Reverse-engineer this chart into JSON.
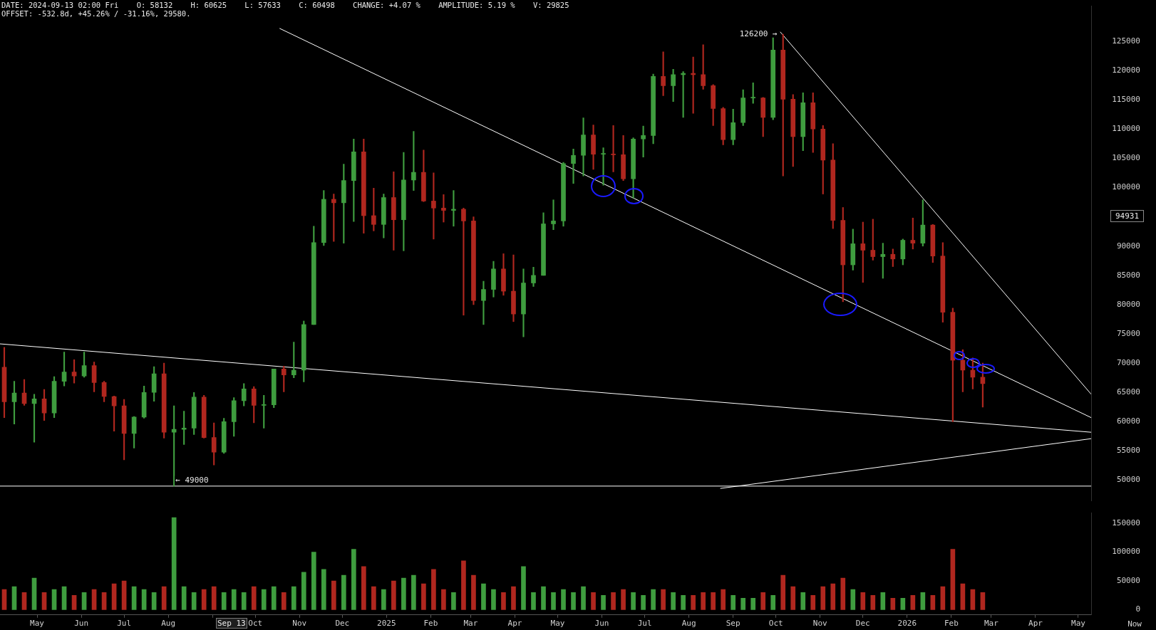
{
  "chart_data": [
    {
      "type": "candlestick",
      "annotations": [
        "DATE: 2024-09-13 02:00 Fri    O: 58132    H: 60625    L: 57633    C: 60498    CHANGE: +4.07 %    AMPLITUDE: 5.19 %    V: 29825",
        "OFFSET: -532.8d, +45.26% / -31.16%, 29580.",
        {
          "text": "126200 →",
          "x": "2025-10-06",
          "y": 126200
        },
        {
          "text": "← 49000",
          "x": "2024-08-05",
          "y": 49000
        },
        "94931"
      ],
      "x": [
        "2024-04-08",
        "2024-04-15",
        "2024-04-22",
        "2024-04-29",
        "2024-05-06",
        "2024-05-13",
        "2024-05-20",
        "2024-05-27",
        "2024-06-03",
        "2024-06-10",
        "2024-06-17",
        "2024-06-24",
        "2024-07-01",
        "2024-07-08",
        "2024-07-15",
        "2024-07-22",
        "2024-07-29",
        "2024-08-05",
        "2024-08-12",
        "2024-08-19",
        "2024-08-26",
        "2024-09-02",
        "2024-09-09",
        "2024-09-16",
        "2024-09-23",
        "2024-09-30",
        "2024-10-07",
        "2024-10-14",
        "2024-10-21",
        "2024-10-28",
        "2024-11-04",
        "2024-11-11",
        "2024-11-18",
        "2024-11-25",
        "2024-12-02",
        "2024-12-09",
        "2024-12-16",
        "2024-12-23",
        "2024-12-30",
        "2025-01-06",
        "2025-01-13",
        "2025-01-20",
        "2025-01-27",
        "2025-02-03",
        "2025-02-10",
        "2025-02-17",
        "2025-02-24",
        "2025-03-03",
        "2025-03-10",
        "2025-03-17",
        "2025-03-24",
        "2025-03-31",
        "2025-04-07",
        "2025-04-14",
        "2025-04-21",
        "2025-04-28",
        "2025-05-05",
        "2025-05-12",
        "2025-05-19",
        "2025-05-26",
        "2025-06-02",
        "2025-06-09",
        "2025-06-16",
        "2025-06-23",
        "2025-06-30",
        "2025-07-07",
        "2025-07-14",
        "2025-07-21",
        "2025-07-28",
        "2025-08-04",
        "2025-08-11",
        "2025-08-18",
        "2025-08-25",
        "2025-09-01",
        "2025-09-08",
        "2025-09-15",
        "2025-09-22",
        "2025-09-29",
        "2025-10-06",
        "2025-10-13",
        "2025-10-20",
        "2025-10-27",
        "2025-11-03",
        "2025-11-10",
        "2025-11-17",
        "2025-11-24",
        "2025-12-01",
        "2025-12-08",
        "2025-12-15",
        "2025-12-22",
        "2025-12-29",
        "2026-01-05",
        "2026-01-12",
        "2026-01-19",
        "2026-01-26",
        "2026-02-02",
        "2026-02-09",
        "2026-02-16",
        "2026-02-23"
      ],
      "ohlc": [
        [
          69300,
          72700,
          60700,
          63400
        ],
        [
          63400,
          66900,
          59600,
          64900
        ],
        [
          64900,
          67200,
          62800,
          63100
        ],
        [
          63100,
          64700,
          56500,
          63900
        ],
        [
          63900,
          65500,
          60200,
          61500
        ],
        [
          61500,
          67700,
          60700,
          66900
        ],
        [
          66900,
          71900,
          66100,
          68500
        ],
        [
          68500,
          70600,
          66600,
          67800
        ],
        [
          67800,
          71900,
          67600,
          69600
        ],
        [
          69600,
          70200,
          65100,
          66700
        ],
        [
          66700,
          66900,
          63400,
          64300
        ],
        [
          64300,
          64400,
          58400,
          62700
        ],
        [
          62700,
          63800,
          53500,
          58000
        ],
        [
          58000,
          60900,
          55500,
          60800
        ],
        [
          60800,
          66100,
          60600,
          65000
        ],
        [
          65000,
          69400,
          63500,
          68200
        ],
        [
          68200,
          70000,
          57200,
          58200
        ],
        [
          58200,
          62700,
          49000,
          58700
        ],
        [
          58700,
          61800,
          56100,
          58900
        ],
        [
          58900,
          65000,
          57800,
          64200
        ],
        [
          64200,
          64500,
          57200,
          57300
        ],
        [
          57300,
          59800,
          52600,
          54800
        ],
        [
          54800,
          60600,
          54600,
          60000
        ],
        [
          60000,
          64100,
          57500,
          63600
        ],
        [
          63600,
          66500,
          62700,
          65600
        ],
        [
          65600,
          66000,
          59800,
          62800
        ],
        [
          62800,
          64500,
          58900,
          62900
        ],
        [
          62900,
          69000,
          62400,
          69000
        ],
        [
          69000,
          69500,
          65100,
          68000
        ],
        [
          68000,
          73600,
          67500,
          68800
        ],
        [
          68800,
          77200,
          66800,
          76600
        ],
        [
          76600,
          93400,
          76600,
          90600
        ],
        [
          90600,
          99500,
          90100,
          98000
        ],
        [
          98000,
          98900,
          90800,
          97400
        ],
        [
          97400,
          104000,
          90500,
          101200
        ],
        [
          101200,
          108300,
          94200,
          106100
        ],
        [
          106100,
          108300,
          92200,
          95200
        ],
        [
          95200,
          99900,
          92600,
          93700
        ],
        [
          93700,
          98900,
          91400,
          98300
        ],
        [
          98300,
          102700,
          89300,
          94500
        ],
        [
          94500,
          106000,
          89200,
          101300
        ],
        [
          101300,
          109600,
          99500,
          102600
        ],
        [
          102600,
          106400,
          97600,
          97700
        ],
        [
          97700,
          102500,
          91200,
          96500
        ],
        [
          96500,
          98800,
          94100,
          96100
        ],
        [
          96100,
          99500,
          93400,
          96300
        ],
        [
          96300,
          96500,
          78200,
          94300
        ],
        [
          94300,
          95000,
          80000,
          80700
        ],
        [
          80700,
          84000,
          76600,
          82600
        ],
        [
          82600,
          87400,
          81300,
          86100
        ],
        [
          86100,
          88700,
          81600,
          82300
        ],
        [
          82300,
          88500,
          77100,
          78400
        ],
        [
          78400,
          86100,
          74500,
          83700
        ],
        [
          83700,
          86400,
          83100,
          85000
        ],
        [
          85000,
          95700,
          85000,
          93800
        ],
        [
          93800,
          97900,
          92800,
          94300
        ],
        [
          94300,
          104300,
          93400,
          104100
        ],
        [
          104100,
          106600,
          100700,
          105500
        ],
        [
          105500,
          111900,
          102000,
          109000
        ],
        [
          109000,
          110700,
          103100,
          105700
        ],
        [
          105700,
          106800,
          100400,
          105700
        ],
        [
          105700,
          110600,
          102700,
          105600
        ],
        [
          105600,
          108900,
          101200,
          101500
        ],
        [
          101500,
          108500,
          98200,
          108300
        ],
        [
          108300,
          110500,
          105200,
          108900
        ],
        [
          108900,
          119400,
          107500,
          119000
        ],
        [
          119000,
          123200,
          115700,
          117400
        ],
        [
          117400,
          120200,
          114700,
          119300
        ],
        [
          119300,
          119800,
          112000,
          119500
        ],
        [
          119500,
          122300,
          112700,
          119300
        ],
        [
          119300,
          124400,
          116800,
          117400
        ],
        [
          117400,
          117600,
          110600,
          113500
        ],
        [
          113500,
          113700,
          107300,
          108200
        ],
        [
          108200,
          113400,
          107300,
          111100
        ],
        [
          111100,
          116700,
          110600,
          115300
        ],
        [
          115300,
          117900,
          114400,
          115300
        ],
        [
          115300,
          115400,
          108700,
          112000
        ],
        [
          112000,
          125600,
          111600,
          123500
        ],
        [
          123500,
          126200,
          102000,
          115100
        ],
        [
          115100,
          115900,
          103600,
          108700
        ],
        [
          108700,
          116200,
          106300,
          114500
        ],
        [
          114500,
          116200,
          106000,
          110000
        ],
        [
          110000,
          110600,
          98900,
          104700
        ],
        [
          104700,
          107500,
          93000,
          94400
        ],
        [
          94400,
          96600,
          80500,
          86800
        ],
        [
          86800,
          92900,
          85900,
          90400
        ],
        [
          90400,
          94100,
          83800,
          89300
        ],
        [
          89300,
          94600,
          87600,
          88200
        ],
        [
          88200,
          90500,
          84500,
          88600
        ],
        [
          88600,
          89500,
          86500,
          87800
        ],
        [
          87800,
          91200,
          86800,
          91000
        ],
        [
          91000,
          94800,
          89500,
          90500
        ],
        [
          90500,
          97900,
          90000,
          93600
        ],
        [
          93600,
          93700,
          87200,
          88300
        ],
        [
          88300,
          90600,
          77000,
          78700
        ],
        [
          78700,
          79400,
          60000,
          70500
        ],
        [
          70500,
          72300,
          65100,
          68800
        ],
        [
          68800,
          70900,
          65600,
          67600
        ],
        [
          67600,
          70000,
          62500,
          66500
        ]
      ],
      "colors": [
        "#b0271f",
        "#3f9d3f",
        "#b0271f",
        "#3f9d3f",
        "#b0271f",
        "#3f9d3f",
        "#3f9d3f",
        "#b0271f",
        "#3f9d3f",
        "#b0271f",
        "#b0271f",
        "#b0271f",
        "#b0271f",
        "#3f9d3f",
        "#3f9d3f",
        "#3f9d3f",
        "#b0271f",
        "#3f9d3f",
        "#3f9d3f",
        "#3f9d3f",
        "#b0271f",
        "#b0271f",
        "#3f9d3f",
        "#3f9d3f",
        "#3f9d3f",
        "#b0271f",
        "#3f9d3f",
        "#3f9d3f",
        "#b0271f",
        "#3f9d3f",
        "#3f9d3f",
        "#3f9d3f",
        "#3f9d3f",
        "#b0271f",
        "#3f9d3f",
        "#3f9d3f",
        "#b0271f",
        "#b0271f",
        "#3f9d3f",
        "#b0271f",
        "#3f9d3f",
        "#3f9d3f",
        "#b0271f",
        "#b0271f",
        "#b0271f",
        "#3f9d3f",
        "#b0271f",
        "#b0271f",
        "#3f9d3f",
        "#3f9d3f",
        "#b0271f",
        "#b0271f",
        "#3f9d3f",
        "#3f9d3f",
        "#3f9d3f",
        "#3f9d3f",
        "#3f9d3f",
        "#3f9d3f",
        "#3f9d3f",
        "#b0271f",
        "#3f9d3f",
        "#b0271f",
        "#b0271f",
        "#3f9d3f",
        "#3f9d3f",
        "#3f9d3f",
        "#b0271f",
        "#3f9d3f",
        "#3f9d3f",
        "#b0271f",
        "#b0271f",
        "#b0271f",
        "#b0271f",
        "#3f9d3f",
        "#3f9d3f",
        "#3f9d3f",
        "#b0271f",
        "#3f9d3f",
        "#b0271f",
        "#b0271f",
        "#3f9d3f",
        "#b0271f",
        "#b0271f",
        "#b0271f",
        "#b0271f",
        "#3f9d3f",
        "#b0271f",
        "#b0271f",
        "#3f9d3f",
        "#b0271f",
        "#3f9d3f",
        "#b0271f",
        "#3f9d3f",
        "#b0271f",
        "#b0271f",
        "#b0271f",
        "#b0271f",
        "#b0271f",
        "#b0271f"
      ],
      "series": [
        {
          "type": "line",
          "x": [
            "2024-10-18",
            "2026-05-10"
          ],
          "values": [
            127200,
            60700
          ],
          "color": "#ffffff"
        },
        {
          "type": "line",
          "x": [
            "2024-04-05",
            "2026-05-10"
          ],
          "values": [
            73300,
            58200
          ],
          "color": "#ffffff"
        },
        {
          "type": "line",
          "x": [
            "2025-10-04",
            "2026-05-10"
          ],
          "values": [
            126600,
            64700
          ],
          "color": "#ffffff"
        },
        {
          "type": "line",
          "x": [
            "2025-08-23",
            "2026-05-10"
          ],
          "values": [
            48600,
            57100
          ],
          "color": "#ffffff"
        }
      ],
      "marker": "none",
      "ref_lines": [
        {
          "axis": "y",
          "value": 49000,
          "color": "#ffffff"
        }
      ],
      "xlim": [
        "2024-04-05",
        "2026-05-10"
      ],
      "ylim": [
        46500,
        131000
      ],
      "yticks": [
        50000,
        55000,
        60000,
        65000,
        70000,
        75000,
        80000,
        85000,
        90000,
        100000,
        105000,
        110000,
        115000,
        120000,
        125000
      ],
      "tick_labels": "y"
    },
    {
      "type": "bar",
      "annotations": [
        "Sep 13",
        "Now"
      ],
      "x": [
        "2024-04-08",
        "2024-04-15",
        "2024-04-22",
        "2024-04-29",
        "2024-05-06",
        "2024-05-13",
        "2024-05-20",
        "2024-05-27",
        "2024-06-03",
        "2024-06-10",
        "2024-06-17",
        "2024-06-24",
        "2024-07-01",
        "2024-07-08",
        "2024-07-15",
        "2024-07-22",
        "2024-07-29",
        "2024-08-05",
        "2024-08-12",
        "2024-08-19",
        "2024-08-26",
        "2024-09-02",
        "2024-09-09",
        "2024-09-16",
        "2024-09-23",
        "2024-09-30",
        "2024-10-07",
        "2024-10-14",
        "2024-10-21",
        "2024-10-28",
        "2024-11-04",
        "2024-11-11",
        "2024-11-18",
        "2024-11-25",
        "2024-12-02",
        "2024-12-09",
        "2024-12-16",
        "2024-12-23",
        "2024-12-30",
        "2025-01-06",
        "2025-01-13",
        "2025-01-20",
        "2025-01-27",
        "2025-02-03",
        "2025-02-10",
        "2025-02-17",
        "2025-02-24",
        "2025-03-03",
        "2025-03-10",
        "2025-03-17",
        "2025-03-24",
        "2025-03-31",
        "2025-04-07",
        "2025-04-14",
        "2025-04-21",
        "2025-04-28",
        "2025-05-05",
        "2025-05-12",
        "2025-05-19",
        "2025-05-26",
        "2025-06-02",
        "2025-06-09",
        "2025-06-16",
        "2025-06-23",
        "2025-06-30",
        "2025-07-07",
        "2025-07-14",
        "2025-07-21",
        "2025-07-28",
        "2025-08-04",
        "2025-08-11",
        "2025-08-18",
        "2025-08-25",
        "2025-09-01",
        "2025-09-08",
        "2025-09-15",
        "2025-09-22",
        "2025-09-29",
        "2025-10-06",
        "2025-10-13",
        "2025-10-20",
        "2025-10-27",
        "2025-11-03",
        "2025-11-10",
        "2025-11-17",
        "2025-11-24",
        "2025-12-01",
        "2025-12-08",
        "2025-12-15",
        "2025-12-22",
        "2025-12-29",
        "2026-01-05",
        "2026-01-12",
        "2026-01-19",
        "2026-01-26",
        "2026-02-02",
        "2026-02-09",
        "2026-02-16",
        "2026-02-23"
      ],
      "values": [
        35000,
        40000,
        30000,
        55000,
        30000,
        35000,
        40000,
        25000,
        30000,
        35000,
        30000,
        45000,
        50000,
        40000,
        35000,
        30000,
        40000,
        160000,
        40000,
        30000,
        35000,
        40000,
        30000,
        35000,
        30000,
        40000,
        35000,
        40000,
        30000,
        40000,
        65000,
        100000,
        70000,
        50000,
        60000,
        105000,
        75000,
        40000,
        35000,
        50000,
        55000,
        60000,
        45000,
        70000,
        35000,
        30000,
        85000,
        60000,
        45000,
        35000,
        30000,
        40000,
        75000,
        30000,
        40000,
        30000,
        35000,
        30000,
        40000,
        30000,
        25000,
        30000,
        35000,
        30000,
        25000,
        35000,
        35000,
        30000,
        25000,
        25000,
        30000,
        30000,
        35000,
        25000,
        20000,
        20000,
        30000,
        25000,
        60000,
        40000,
        30000,
        25000,
        40000,
        45000,
        55000,
        35000,
        30000,
        25000,
        30000,
        20000,
        20000,
        25000,
        30000,
        25000,
        40000,
        105000,
        45000,
        35000,
        30000
      ],
      "colors": [
        "#b0271f",
        "#3f9d3f",
        "#b0271f",
        "#3f9d3f",
        "#b0271f",
        "#3f9d3f",
        "#3f9d3f",
        "#b0271f",
        "#3f9d3f",
        "#b0271f",
        "#b0271f",
        "#b0271f",
        "#b0271f",
        "#3f9d3f",
        "#3f9d3f",
        "#3f9d3f",
        "#b0271f",
        "#3f9d3f",
        "#3f9d3f",
        "#3f9d3f",
        "#b0271f",
        "#b0271f",
        "#3f9d3f",
        "#3f9d3f",
        "#3f9d3f",
        "#b0271f",
        "#3f9d3f",
        "#3f9d3f",
        "#b0271f",
        "#3f9d3f",
        "#3f9d3f",
        "#3f9d3f",
        "#3f9d3f",
        "#b0271f",
        "#3f9d3f",
        "#3f9d3f",
        "#b0271f",
        "#b0271f",
        "#3f9d3f",
        "#b0271f",
        "#3f9d3f",
        "#3f9d3f",
        "#b0271f",
        "#b0271f",
        "#b0271f",
        "#3f9d3f",
        "#b0271f",
        "#b0271f",
        "#3f9d3f",
        "#3f9d3f",
        "#b0271f",
        "#b0271f",
        "#3f9d3f",
        "#3f9d3f",
        "#3f9d3f",
        "#3f9d3f",
        "#3f9d3f",
        "#3f9d3f",
        "#3f9d3f",
        "#b0271f",
        "#3f9d3f",
        "#b0271f",
        "#b0271f",
        "#3f9d3f",
        "#3f9d3f",
        "#3f9d3f",
        "#b0271f",
        "#3f9d3f",
        "#3f9d3f",
        "#b0271f",
        "#b0271f",
        "#b0271f",
        "#b0271f",
        "#3f9d3f",
        "#3f9d3f",
        "#3f9d3f",
        "#b0271f",
        "#3f9d3f",
        "#b0271f",
        "#b0271f",
        "#3f9d3f",
        "#b0271f",
        "#b0271f",
        "#b0271f",
        "#b0271f",
        "#3f9d3f",
        "#b0271f",
        "#b0271f",
        "#3f9d3f",
        "#b0271f",
        "#3f9d3f",
        "#b0271f",
        "#3f9d3f",
        "#b0271f",
        "#b0271f",
        "#b0271f",
        "#b0271f",
        "#b0271f",
        "#b0271f"
      ],
      "xlim": [
        "2024-04-05",
        "2026-05-10"
      ],
      "xticks": [
        {
          "value": "2024-05",
          "label": "May"
        },
        {
          "value": "2024-06",
          "label": "Jun"
        },
        {
          "value": "2024-07",
          "label": "Jul"
        },
        {
          "value": "2024-08",
          "label": "Aug"
        },
        {
          "value": "2024-09",
          "label": null
        },
        {
          "value": "2024-10",
          "label": "Oct"
        },
        {
          "value": "2024-11",
          "label": "Nov"
        },
        {
          "value": "2024-12",
          "label": "Dec"
        },
        {
          "value": "2025-01",
          "label": "2025"
        },
        {
          "value": "2025-02",
          "label": "Feb"
        },
        {
          "value": "2025-03",
          "label": "Mar"
        },
        {
          "value": "2025-04",
          "label": "Apr"
        },
        {
          "value": "2025-05",
          "label": "May"
        },
        {
          "value": "2025-06",
          "label": "Jun"
        },
        {
          "value": "2025-07",
          "label": "Jul"
        },
        {
          "value": "2025-08",
          "label": "Aug"
        },
        {
          "value": "2025-09",
          "label": "Sep"
        },
        {
          "value": "2025-10",
          "label": "Oct"
        },
        {
          "value": "2025-11",
          "label": "Nov"
        },
        {
          "value": "2025-12",
          "label": "Dec"
        },
        {
          "value": "2026-01",
          "label": "2026"
        },
        {
          "value": "2026-02",
          "label": "Feb"
        },
        {
          "value": "2026-03",
          "label": "Mar"
        },
        {
          "value": "2026-04",
          "label": "Apr"
        },
        {
          "value": "2026-05",
          "label": "May"
        }
      ],
      "ylim": [
        -9000,
        168000
      ],
      "yticks": [
        0,
        50000,
        100000,
        150000
      ]
    }
  ]
}
